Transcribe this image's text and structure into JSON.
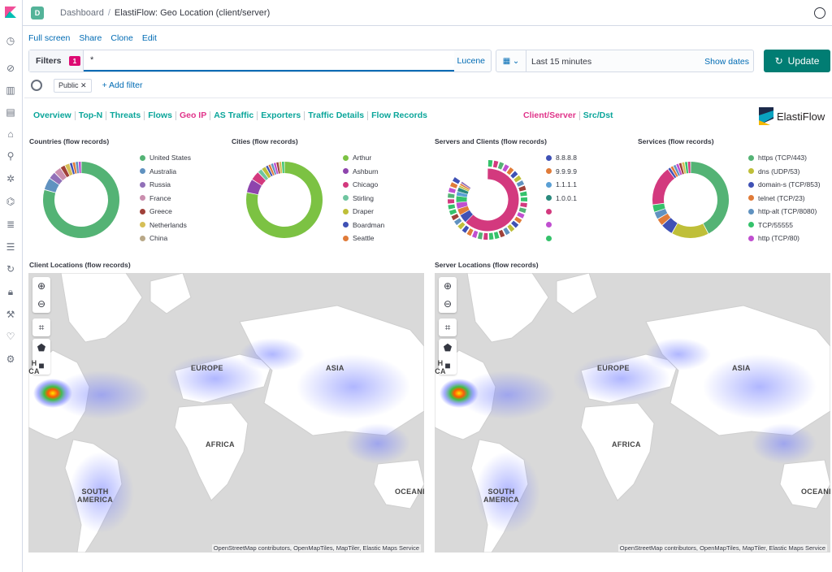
{
  "space_initial": "D",
  "breadcrumbs": [
    "Dashboard",
    "ElastiFlow: Geo Location (client/server)"
  ],
  "menu": [
    "Full screen",
    "Share",
    "Clone",
    "Edit"
  ],
  "query": {
    "filters_label": "Filters",
    "filters_count": "1",
    "value": "*",
    "language": "Lucene"
  },
  "time": {
    "value": "Last 15 minutes",
    "show_dates": "Show dates",
    "update": "Update"
  },
  "filter_pills": [
    {
      "label": "Public"
    }
  ],
  "add_filter": "+ Add filter",
  "nav_left": [
    "Overview",
    "Top-N",
    "Threats",
    "Flows",
    "Geo IP",
    "AS Traffic",
    "Exporters",
    "Traffic Details",
    "Flow Records"
  ],
  "nav_left_active": "Geo IP",
  "nav_right": [
    "Client/Server",
    "Src/Dst"
  ],
  "nav_right_active": "Client/Server",
  "brand": "ElastiFlow",
  "panels": {
    "countries": {
      "title": "Countries (flow records)",
      "legend": [
        {
          "label": "United States",
          "color": "#54b375"
        },
        {
          "label": "Australia",
          "color": "#6092c0"
        },
        {
          "label": "Russia",
          "color": "#9170b8"
        },
        {
          "label": "France",
          "color": "#ca8eae"
        },
        {
          "label": "Greece",
          "color": "#a0413a"
        },
        {
          "label": "Netherlands",
          "color": "#d6bf57"
        },
        {
          "label": "China",
          "color": "#b9a888"
        }
      ]
    },
    "cities": {
      "title": "Cities (flow records)",
      "legend": [
        {
          "label": "Arthur",
          "color": "#7cc243"
        },
        {
          "label": "Ashburn",
          "color": "#8e44ad"
        },
        {
          "label": "Chicago",
          "color": "#d3397e"
        },
        {
          "label": "Stirling",
          "color": "#6fc5a0"
        },
        {
          "label": "Draper",
          "color": "#bfbf39"
        },
        {
          "label": "Boardman",
          "color": "#3f51b5"
        },
        {
          "label": "Seattle",
          "color": "#e07b39"
        }
      ]
    },
    "servers": {
      "title": "Servers and Clients (flow records)",
      "legend": [
        {
          "label": "8.8.8.8",
          "color": "#3f51b5"
        },
        {
          "label": "9.9.9.9",
          "color": "#e07b39"
        },
        {
          "label": "1.1.1.1",
          "color": "#5a9fd4"
        },
        {
          "label": "1.0.0.1",
          "color": "#2a8a7d"
        },
        {
          "label": "",
          "color": "#d3397e"
        },
        {
          "label": "",
          "color": "#c04fd0"
        },
        {
          "label": "",
          "color": "#35c26b"
        }
      ]
    },
    "services": {
      "title": "Services (flow records)",
      "legend": [
        {
          "label": "https (TCP/443)",
          "color": "#54b375"
        },
        {
          "label": "dns (UDP/53)",
          "color": "#bfbf39"
        },
        {
          "label": "domain-s (TCP/853)",
          "color": "#3f51b5"
        },
        {
          "label": "telnet (TCP/23)",
          "color": "#e07b39"
        },
        {
          "label": "http-alt (TCP/8080)",
          "color": "#6092c0"
        },
        {
          "label": "TCP/55555",
          "color": "#35c26b"
        },
        {
          "label": "http (TCP/80)",
          "color": "#c04fd0"
        }
      ]
    },
    "client_map": {
      "title": "Client Locations (flow records)"
    },
    "server_map": {
      "title": "Server Locations (flow records)"
    }
  },
  "map": {
    "labels": [
      "EUROPE",
      "ASIA",
      "AFRICA",
      "SOUTH AMERICA",
      "OCEANI",
      "H CA"
    ],
    "attribution": "OpenStreetMap contributors, OpenMapTiles, MapTiler, Elastic Maps Service"
  }
}
